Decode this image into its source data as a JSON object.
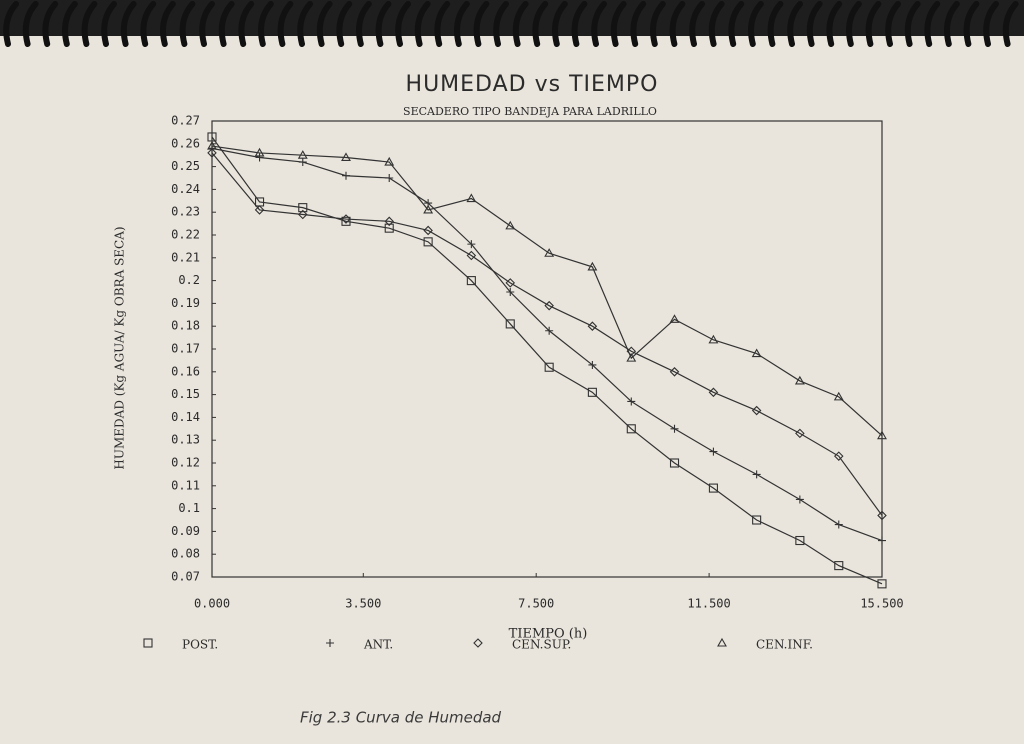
{
  "chart_data": {
    "type": "line",
    "title": "HUMEDAD vs TIEMPO",
    "subtitle": "SECADERO TIPO BANDEJA PARA LADRILLO",
    "x_label": "TIEMPO (h)",
    "y_label": "HUMEDAD (Kg AGUA/ Kg OBRA SECA)",
    "annotation": "Fig 2.3 Curva de Humedad",
    "x": [
      0,
      1.1,
      2.1,
      3.1,
      4.1,
      5,
      6,
      6.9,
      7.8,
      8.8,
      9.7,
      10.7,
      11.6,
      12.6,
      13.6,
      14.5,
      15.5
    ],
    "xlim": [
      0,
      15.5
    ],
    "xticks": [
      {
        "value": 0,
        "label": "0.000"
      },
      {
        "value": 3.5,
        "label": "3.500"
      },
      {
        "value": 7.5,
        "label": "7.500"
      },
      {
        "value": 11.5,
        "label": "11.500"
      },
      {
        "value": 15.5,
        "label": "15.500"
      }
    ],
    "ylim": [
      0.07,
      0.27
    ],
    "yticks": [
      0.27,
      0.26,
      0.25,
      0.24,
      0.23,
      0.22,
      0.21,
      0.2,
      0.19,
      0.18,
      0.17,
      0.16,
      0.15,
      0.14,
      0.13,
      0.12,
      0.11,
      0.1,
      0.09,
      0.08,
      0.07
    ],
    "grid": false,
    "legend": "bottom",
    "series": [
      {
        "name": "POST.",
        "color": "#333333",
        "marker": "square",
        "values": [
          0.263,
          0.2345,
          0.232,
          0.226,
          0.223,
          0.217,
          0.2,
          0.181,
          0.162,
          0.151,
          0.135,
          0.12,
          0.109,
          0.095,
          0.086,
          0.075,
          0.067
        ]
      },
      {
        "name": "ANT.",
        "color": "#333333",
        "marker": "plus",
        "values": [
          0.258,
          0.254,
          0.252,
          0.246,
          0.245,
          0.234,
          0.216,
          0.195,
          0.178,
          0.163,
          0.147,
          0.135,
          0.125,
          0.115,
          0.104,
          0.093,
          0.086
        ]
      },
      {
        "name": "CEN.SUP.",
        "color": "#333333",
        "marker": "diamond",
        "values": [
          0.256,
          0.231,
          0.229,
          0.227,
          0.226,
          0.222,
          0.211,
          0.199,
          0.189,
          0.18,
          0.169,
          0.16,
          0.151,
          0.143,
          0.133,
          0.123,
          0.097
        ]
      },
      {
        "name": "CEN.INF.",
        "color": "#333333",
        "marker": "triangle",
        "values": [
          0.259,
          0.256,
          0.255,
          0.254,
          0.252,
          0.231,
          0.236,
          0.224,
          0.212,
          0.206,
          0.166,
          0.183,
          0.174,
          0.168,
          0.156,
          0.149,
          0.132
        ]
      }
    ]
  }
}
